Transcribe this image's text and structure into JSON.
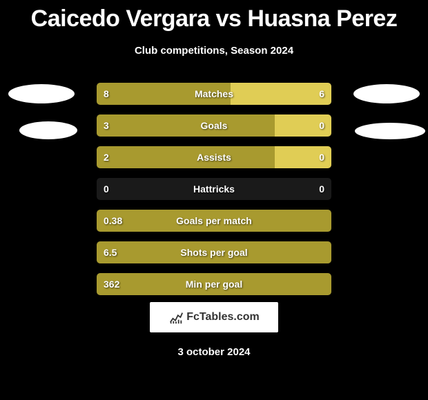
{
  "title": "Caicedo Vergara vs Huasna Perez",
  "subtitle": "Club competitions, Season 2024",
  "footer_date": "3 october 2024",
  "logo_text": "FcTables.com",
  "colors": {
    "background": "#000000",
    "bar_left": "#a89a2f",
    "bar_right": "#e0cd55",
    "text": "#ffffff",
    "ellipse": "#ffffff",
    "logo_bg": "#ffffff"
  },
  "stats": [
    {
      "label": "Matches",
      "left_value": "8",
      "right_value": "6",
      "left_pct": 57,
      "right_pct": 43
    },
    {
      "label": "Goals",
      "left_value": "3",
      "right_value": "0",
      "left_pct": 76,
      "right_pct": 24
    },
    {
      "label": "Assists",
      "left_value": "2",
      "right_value": "0",
      "left_pct": 76,
      "right_pct": 24
    },
    {
      "label": "Hattricks",
      "left_value": "0",
      "right_value": "0",
      "left_pct": 0,
      "right_pct": 0
    },
    {
      "label": "Goals per match",
      "left_value": "0.38",
      "right_value": "",
      "left_pct": 100,
      "right_pct": 0
    },
    {
      "label": "Shots per goal",
      "left_value": "6.5",
      "right_value": "",
      "left_pct": 100,
      "right_pct": 0
    },
    {
      "label": "Min per goal",
      "left_value": "362",
      "right_value": "",
      "left_pct": 100,
      "right_pct": 0
    }
  ]
}
